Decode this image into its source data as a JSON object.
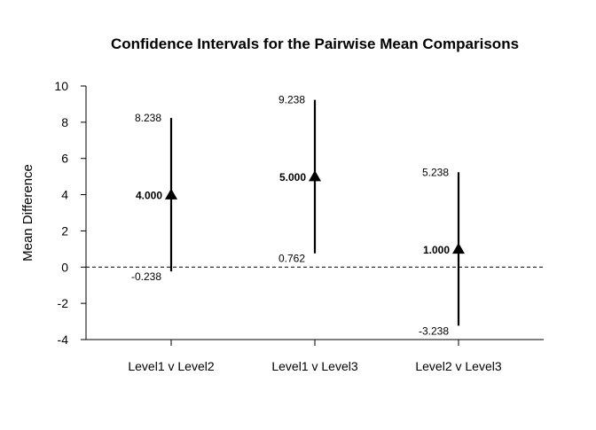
{
  "chart_data": {
    "type": "errorbar",
    "title": "Confidence Intervals for the Pairwise Mean Comparisons",
    "xlabel": "",
    "ylabel": "Mean Difference",
    "ylim": [
      -4,
      10
    ],
    "yticks": [
      -4,
      -2,
      0,
      2,
      4,
      6,
      8,
      10
    ],
    "reference_line": 0,
    "categories": [
      "Level1 v Level2",
      "Level1 v Level3",
      "Level2 v Level3"
    ],
    "estimates": [
      4.0,
      5.0,
      1.0
    ],
    "lower": [
      -0.238,
      0.762,
      -3.238
    ],
    "upper": [
      8.238,
      9.238,
      5.238
    ],
    "estimate_labels": [
      "4.000",
      "5.000",
      "1.000"
    ],
    "lower_labels": [
      "-0.238",
      "0.762",
      "-3.238"
    ],
    "upper_labels": [
      "8.238",
      "9.238",
      "5.238"
    ],
    "grid": false,
    "colors": {
      "marks": "#000000",
      "background": "#ffffff"
    }
  }
}
